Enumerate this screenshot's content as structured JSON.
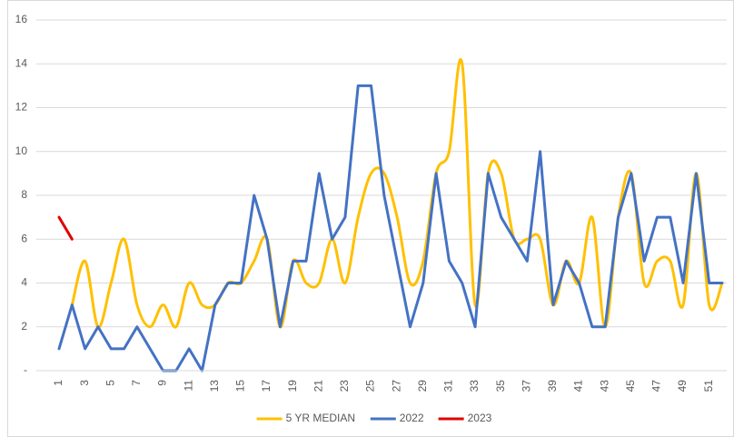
{
  "chart_data": {
    "type": "line",
    "categories": [
      1,
      null,
      3,
      null,
      5,
      null,
      7,
      null,
      9,
      null,
      11,
      null,
      13,
      null,
      15,
      null,
      17,
      null,
      19,
      null,
      21,
      null,
      23,
      null,
      25,
      null,
      27,
      null,
      29,
      null,
      31,
      null,
      33,
      null,
      35,
      null,
      37,
      null,
      39,
      null,
      41,
      null,
      43,
      null,
      45,
      null,
      47,
      null,
      49,
      null,
      51,
      null
    ],
    "series": [
      {
        "name": "5 YR MEDIAN",
        "color": "#ffc000",
        "smooth": true,
        "values": [
          null,
          3,
          5,
          2,
          4,
          6,
          3,
          2,
          3,
          2,
          4,
          3,
          3,
          4,
          4,
          5,
          6,
          2,
          5,
          4,
          4,
          6,
          4,
          7,
          9,
          9,
          7,
          4,
          5,
          9,
          10,
          14,
          3,
          9,
          9,
          6,
          6,
          6,
          3,
          5,
          4,
          7,
          2,
          7,
          9,
          4,
          5,
          5,
          3,
          9,
          3,
          4
        ]
      },
      {
        "name": "2022",
        "color": "#4472c4",
        "smooth": false,
        "values": [
          1,
          3,
          1,
          2,
          1,
          1,
          2,
          1,
          0,
          0,
          1,
          0,
          3,
          4,
          4,
          8,
          6,
          2,
          5,
          5,
          9,
          6,
          7,
          13,
          13,
          8,
          5,
          2,
          4,
          9,
          5,
          4,
          2,
          9,
          7,
          6,
          5,
          10,
          3,
          5,
          4,
          2,
          2,
          7,
          9,
          5,
          7,
          7,
          4,
          9,
          4,
          4
        ]
      },
      {
        "name": "2023",
        "color": "#e00000",
        "smooth": false,
        "values": [
          7,
          6,
          null,
          null,
          null,
          null,
          null,
          null,
          null,
          null,
          null,
          null,
          null,
          null,
          null,
          null,
          null,
          null,
          null,
          null,
          null,
          null,
          null,
          null,
          null,
          null,
          null,
          null,
          null,
          null,
          null,
          null,
          null,
          null,
          null,
          null,
          null,
          null,
          null,
          null,
          null,
          null,
          null,
          null,
          null,
          null,
          null,
          null,
          null,
          null,
          null,
          null
        ]
      }
    ],
    "ylim": [
      0,
      16
    ],
    "yticks": [
      {
        "value": 0,
        "label": "-"
      },
      2,
      4,
      6,
      8,
      10,
      12,
      14,
      16
    ],
    "grid": true,
    "legend": "bottom"
  }
}
